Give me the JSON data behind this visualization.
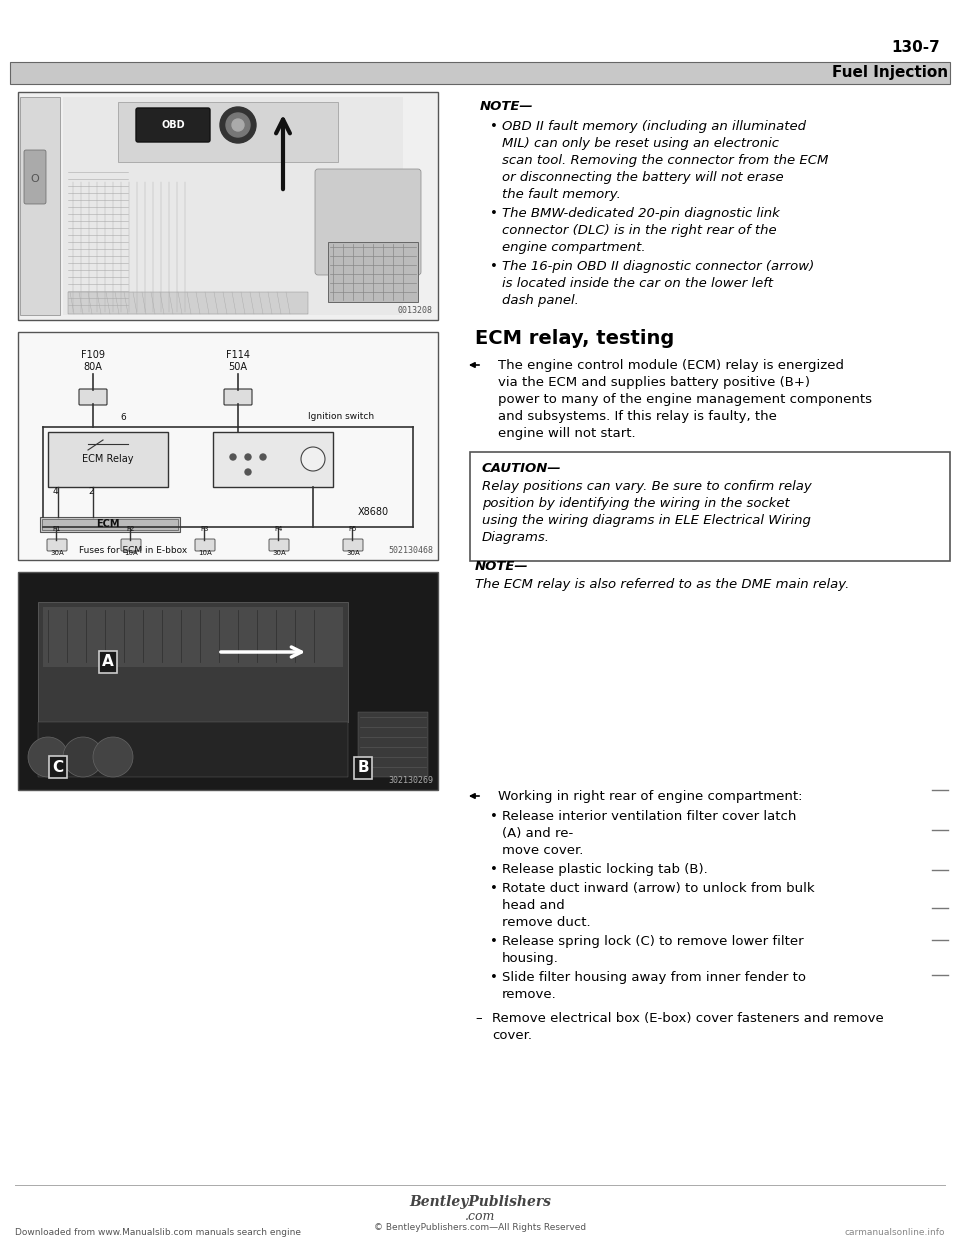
{
  "page_number": "130-7",
  "section_header": "Fuel Injection",
  "bg_color": "#ffffff",
  "note1_header": "NOTE—",
  "note1_bullets": [
    "OBD II fault memory (including an illuminated MIL) can only be reset using an electronic scan tool. Removing the connector from the ECM or disconnecting the battery will not erase the fault memory.",
    "The BMW-dedicated 20-pin diagnostic link connector (DLC) is in the right rear of the engine compartment.",
    "The 16-pin OBD II diagnostic connector (arrow) is located inside the car on the lower left dash panel."
  ],
  "section_title": "ECM relay, testing",
  "arrow_para": "The engine control module (ECM) relay is energized via the ECM and supplies battery positive (B+) power to many of the engine management components and subsystems. If this relay is faulty, the engine will not start.",
  "caution_header": "CAUTION—",
  "caution_text": "Relay positions can vary. Be sure to confirm relay position by identifying the wiring in the socket using the wiring diagrams in ELE Electrical Wiring Diagrams.",
  "note2_header": "NOTE—",
  "note2_text": "The ECM relay is also referred to as the DME main relay.",
  "working_header": "Working in right rear of engine compartment:",
  "working_bullets": [
    "Release interior ventilation filter cover latch (A) and re-\nmove cover.",
    "Release plastic locking tab (B).",
    "Rotate duct inward (arrow) to unlock from bulk head and\nremove duct.",
    "Release spring lock (C) to remove lower filter housing.",
    "Slide filter housing away from inner fender to remove."
  ],
  "remove_line": "Remove electrical box (E-box) cover fasteners and remove\ncover.",
  "footer_publisher": "BentleyPublishers",
  "footer_com": ".com",
  "footer_copy": "© BentleyPublishers.com—All Rights Reserved",
  "footer_left": "Downloaded from www.Manualslib.com manuals search engine",
  "footer_right": "carmanualsonline.info",
  "img1_label": "0013208",
  "img2_label1": "Fuses for ECM in E-bbox",
  "img2_label2": "502130468",
  "img3_label": "302130269"
}
